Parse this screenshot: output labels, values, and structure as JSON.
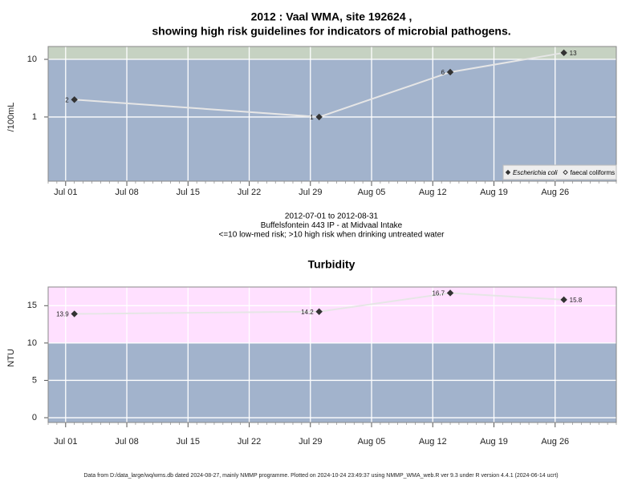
{
  "chart_data": [
    {
      "type": "line",
      "title": [
        "2012 : Vaal WMA, site 192624 ,",
        "showing high risk guidelines for indicators of microbial pathogens."
      ],
      "ylabel": "/100mL",
      "log_scale": true,
      "x": [
        "Jul 02",
        "Jul 30",
        "Aug 14",
        "Aug 27"
      ],
      "series": [
        {
          "name": "Escherichia coli",
          "color": "#333333",
          "marker": "filled",
          "values": [
            2,
            1,
            6,
            13
          ]
        },
        {
          "name": "faecal coliforms",
          "color": "#333333",
          "marker": "open",
          "values": [
            null,
            null,
            null,
            null
          ]
        }
      ],
      "xlim": [
        "Jun 29",
        "Sep 02"
      ],
      "xticks": [
        "Jul 01",
        "Jul 08",
        "Jul 15",
        "Jul 22",
        "Jul 29",
        "Aug 05",
        "Aug 12",
        "Aug 19",
        "Aug 26"
      ],
      "ylim": [
        0.077,
        16.7
      ],
      "yticks": [
        1,
        10
      ],
      "grid": true,
      "threshold": 10,
      "band_colors": {
        "below": "#a2b3cc",
        "above": "#c6d2c2"
      },
      "line_color": "#e6e6e6",
      "legend": "bottom right",
      "notes": [
        "2012-07-01 to 2012-08-31",
        "Buffelsfontein 443 IP - at Midvaal Intake",
        "<=10 low-med risk; >10 high risk when drinking untreated water"
      ]
    },
    {
      "type": "line",
      "title": "Turbidity",
      "ylabel": "NTU",
      "log_scale": false,
      "x": [
        "Jul 02",
        "Jul 30",
        "Aug 14",
        "Aug 27"
      ],
      "values": [
        13.9,
        14.2,
        16.7,
        15.8
      ],
      "color": "#333333",
      "xlim": [
        "Jun 29",
        "Sep 02"
      ],
      "xticks": [
        "Jul 01",
        "Jul 08",
        "Jul 15",
        "Jul 22",
        "Jul 29",
        "Aug 05",
        "Aug 12",
        "Aug 19",
        "Aug 26"
      ],
      "ylim": [
        -0.64,
        17.5
      ],
      "yticks": [
        0,
        5,
        10,
        15
      ],
      "grid": true,
      "threshold": 10,
      "band_colors": {
        "below": "#a2b3cc",
        "above": "#ffe0ff"
      },
      "line_color": "#e6e6e6"
    }
  ],
  "footer": "Data from D:/data_large/wq/wms.db dated 2024-08-27, mainly NMMP programme. Plotted on 2024-10-24 23:49:37 using NMMP_WMA_web.R ver 9.3 under R version 4.4.1 (2024-06-14 ucrt)"
}
